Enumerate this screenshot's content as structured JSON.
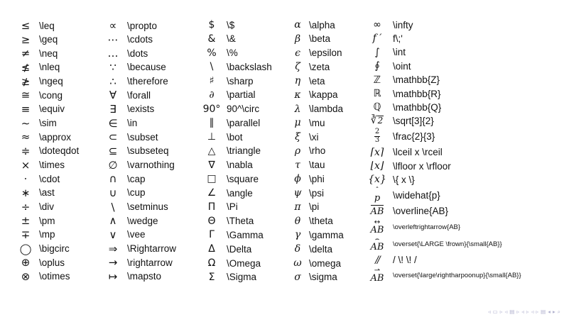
{
  "slide": {
    "background": "#ffffff",
    "text_color": "#111111",
    "nav_color": "#b2b2cf",
    "columns": [
      {
        "rows": [
          {
            "s": "≤",
            "c": "\\leq"
          },
          {
            "s": "≥",
            "c": "\\geq"
          },
          {
            "s": "≠",
            "c": "\\neq"
          },
          {
            "s": "≰",
            "c": "\\nleq"
          },
          {
            "s": "≱",
            "c": "\\ngeq"
          },
          {
            "s": "≅",
            "c": "\\cong"
          },
          {
            "s": "≡",
            "c": "\\equiv"
          },
          {
            "s": "∼",
            "c": "\\sim"
          },
          {
            "s": "≈",
            "c": "\\approx"
          },
          {
            "s": "≑",
            "c": "\\doteqdot"
          },
          {
            "s": "×",
            "c": "\\times"
          },
          {
            "s": "⋅",
            "c": "\\cdot"
          },
          {
            "s": "∗",
            "c": "\\ast"
          },
          {
            "s": "÷",
            "c": "\\div"
          },
          {
            "s": "±",
            "c": "\\pm"
          },
          {
            "s": "∓",
            "c": "\\mp"
          },
          {
            "s": "◯",
            "c": "\\bigcirc"
          },
          {
            "s": "⊕",
            "c": "\\oplus"
          },
          {
            "s": "⊗",
            "c": "\\otimes"
          }
        ]
      },
      {
        "rows": [
          {
            "s": "∝",
            "c": "\\propto"
          },
          {
            "s": "⋯",
            "c": "\\cdots"
          },
          {
            "s": "…",
            "c": "\\dots"
          },
          {
            "s": "∵",
            "c": "\\because"
          },
          {
            "s": "∴",
            "c": "\\therefore"
          },
          {
            "s": "∀",
            "c": "\\forall"
          },
          {
            "s": "∃",
            "c": "\\exists"
          },
          {
            "s": "∈",
            "c": "\\in"
          },
          {
            "s": "⊂",
            "c": "\\subset"
          },
          {
            "s": "⊆",
            "c": "\\subseteq"
          },
          {
            "s": "∅",
            "c": "\\varnothing"
          },
          {
            "s": "∩",
            "c": "\\cap"
          },
          {
            "s": "∪",
            "c": "\\cup"
          },
          {
            "s": "\\",
            "c": "\\setminus"
          },
          {
            "s": "∧",
            "c": "\\wedge"
          },
          {
            "s": "∨",
            "c": "\\vee"
          },
          {
            "s": "⇒",
            "c": "\\Rightarrow"
          },
          {
            "s": "→",
            "c": "\\rightarrow"
          },
          {
            "s": "↦",
            "c": "\\mapsto"
          }
        ]
      },
      {
        "rows": [
          {
            "s": "$",
            "c": "\\$"
          },
          {
            "s": "&",
            "c": "\\&"
          },
          {
            "s": "%",
            "c": "\\%"
          },
          {
            "s": "\\",
            "c": "\\backslash"
          },
          {
            "s": "♯",
            "c": "\\sharp"
          },
          {
            "s": "∂",
            "it": true,
            "c": "\\partial"
          },
          {
            "s": "90°",
            "c": "90^\\circ"
          },
          {
            "s": "∥",
            "c": "\\parallel"
          },
          {
            "s": "⊥",
            "c": "\\bot"
          },
          {
            "s": "△",
            "c": "\\triangle"
          },
          {
            "s": "∇",
            "c": "\\nabla"
          },
          {
            "s": "□",
            "c": "\\square"
          },
          {
            "s": "∠",
            "c": "\\angle"
          },
          {
            "s": "Π",
            "c": "\\Pi"
          },
          {
            "s": "Θ",
            "c": "\\Theta"
          },
          {
            "s": "Γ",
            "c": "\\Gamma"
          },
          {
            "s": "Δ",
            "c": "\\Delta"
          },
          {
            "s": "Ω",
            "c": "\\Omega"
          },
          {
            "s": "Σ",
            "c": "\\Sigma"
          }
        ]
      },
      {
        "rows": [
          {
            "s": "α",
            "it": true,
            "c": "\\alpha"
          },
          {
            "s": "β",
            "it": true,
            "c": "\\beta"
          },
          {
            "s": "ϵ",
            "it": true,
            "c": "\\epsilon"
          },
          {
            "s": "ζ",
            "it": true,
            "c": "\\zeta"
          },
          {
            "s": "η",
            "it": true,
            "c": "\\eta"
          },
          {
            "s": "κ",
            "it": true,
            "c": "\\kappa"
          },
          {
            "s": "λ",
            "it": true,
            "c": "\\lambda"
          },
          {
            "s": "μ",
            "it": true,
            "c": "\\mu"
          },
          {
            "s": "ξ",
            "it": true,
            "c": "\\xi"
          },
          {
            "s": "ρ",
            "it": true,
            "c": "\\rho"
          },
          {
            "s": "τ",
            "it": true,
            "c": "\\tau"
          },
          {
            "s": "ϕ",
            "it": true,
            "c": "\\phi"
          },
          {
            "s": "ψ",
            "it": true,
            "c": "\\psi"
          },
          {
            "s": "π",
            "it": true,
            "c": "\\pi"
          },
          {
            "s": "θ",
            "it": true,
            "c": "\\theta"
          },
          {
            "s": "γ",
            "it": true,
            "c": "\\gamma"
          },
          {
            "s": "δ",
            "it": true,
            "c": "\\delta"
          },
          {
            "s": "ω",
            "it": true,
            "c": "\\omega"
          },
          {
            "s": "σ",
            "it": true,
            "c": "\\sigma"
          }
        ]
      },
      {
        "rows": [
          {
            "s": "∞",
            "c": "\\infty"
          },
          {
            "s": "f ′",
            "it": true,
            "c": "f\\;'"
          },
          {
            "s": "∫",
            "c": "\\int"
          },
          {
            "s": "∮",
            "c": "\\oint"
          },
          {
            "s": "ℤ",
            "c": "\\mathbb{Z}"
          },
          {
            "s": "ℝ",
            "c": "\\mathbb{R}"
          },
          {
            "s": "ℚ",
            "c": "\\mathbb{Q}"
          },
          {
            "type": "sqrt3",
            "base": "2",
            "c": "\\sqrt[3]{2}"
          },
          {
            "type": "frac",
            "num": "2",
            "den": "3",
            "c": "\\frac{2}{3}"
          },
          {
            "s": "⌈x⌉",
            "it": true,
            "c": "\\lceil x \\rceil"
          },
          {
            "s": "⌊x⌋",
            "it": true,
            "c": "\\lfloor x \\rfloor"
          },
          {
            "s": "{x}",
            "it": true,
            "c": "\\{ x \\}"
          },
          {
            "type": "over",
            "top": "ˆ",
            "base": "p",
            "c": "\\widehat{p}"
          },
          {
            "type": "overline",
            "base": "AB",
            "c": "\\overline{AB}"
          },
          {
            "type": "over",
            "top": "↔",
            "base": "AB",
            "small": true,
            "c": "\\overleftrightarrow{AB}"
          },
          {
            "type": "over",
            "top": "⌢",
            "base": "AB",
            "small": true,
            "c": "\\overset{\\LARGE \\frown}{\\small{AB}}"
          },
          {
            "s": "//",
            "it": true,
            "slash": true,
            "c": "/ \\! \\! /"
          },
          {
            "type": "over",
            "top": "⇀",
            "base": "AB",
            "small": true,
            "c": "\\overset{\\large\\rightharpoonup}{\\small{AB}}"
          }
        ]
      }
    ],
    "nav": {
      "icons": [
        {
          "name": "prev-slide-icon",
          "g": "◃"
        },
        {
          "name": "slide-icon",
          "g": "▭"
        },
        {
          "name": "next-slide-icon",
          "g": "▹"
        },
        {
          "name": "prev-frame-icon",
          "g": "◃"
        },
        {
          "name": "frame-icon",
          "g": "▤"
        },
        {
          "name": "next-frame-icon",
          "g": "▹"
        },
        {
          "name": "prev-subsection-icon",
          "g": "◃"
        },
        {
          "name": "next-subsection-icon",
          "g": "▹"
        },
        {
          "name": "prev-section-icon",
          "g": "◃"
        },
        {
          "name": "next-section-icon",
          "g": "▹"
        },
        {
          "name": "presentation-icon",
          "g": "▤"
        },
        {
          "name": "back-icon",
          "g": "◂"
        },
        {
          "name": "forward-icon",
          "g": "▸"
        },
        {
          "name": "search-icon",
          "g": "⌕"
        }
      ]
    }
  }
}
